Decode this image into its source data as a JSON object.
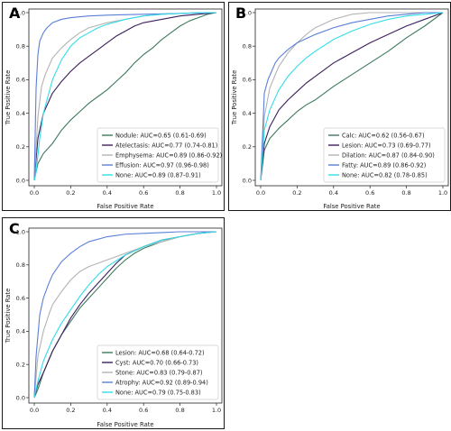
{
  "chart_data": [
    {
      "type": "line",
      "panel_label": "A",
      "xlabel": "False Positive Rate",
      "ylabel": "True Positive Rate",
      "xlim": [
        0.0,
        1.0
      ],
      "ylim": [
        0.0,
        1.0
      ],
      "x_ticks": [
        "0.0",
        "0.2",
        "0.4",
        "0.6",
        "0.8",
        "1.0"
      ],
      "y_ticks": [
        "0.0",
        "0.2",
        "0.4",
        "0.6",
        "0.8",
        "1.0"
      ],
      "grid": false,
      "legend_position": "lower-right",
      "series": [
        {
          "name": "Nodule: AUC=0.65 (0.61-0.69)",
          "color": "#3d7a5c",
          "x": [
            0,
            0.02,
            0.05,
            0.1,
            0.15,
            0.2,
            0.25,
            0.3,
            0.35,
            0.4,
            0.45,
            0.5,
            0.55,
            0.6,
            0.65,
            0.7,
            0.75,
            0.8,
            0.85,
            0.9,
            0.95,
            1.0
          ],
          "y": [
            0,
            0.1,
            0.16,
            0.22,
            0.3,
            0.36,
            0.41,
            0.46,
            0.5,
            0.54,
            0.59,
            0.64,
            0.7,
            0.75,
            0.79,
            0.84,
            0.88,
            0.92,
            0.95,
            0.97,
            0.99,
            1.0
          ]
        },
        {
          "name": "Atelectasis: AUC=0.77 (0.74-0.81)",
          "color": "#3b1f5c",
          "x": [
            0,
            0.02,
            0.05,
            0.1,
            0.15,
            0.2,
            0.25,
            0.3,
            0.35,
            0.4,
            0.45,
            0.5,
            0.55,
            0.6,
            0.7,
            0.8,
            0.9,
            1.0
          ],
          "y": [
            0,
            0.25,
            0.4,
            0.52,
            0.59,
            0.65,
            0.7,
            0.74,
            0.78,
            0.82,
            0.86,
            0.89,
            0.92,
            0.94,
            0.96,
            0.98,
            0.99,
            1.0
          ]
        },
        {
          "name": "Emphysema: AUC=0.89 (0.86-0.92)",
          "color": "#b3b3b3",
          "x": [
            0,
            0.02,
            0.04,
            0.06,
            0.08,
            0.1,
            0.15,
            0.2,
            0.25,
            0.3,
            0.4,
            0.5,
            0.6,
            0.7,
            0.8,
            0.9,
            1.0
          ],
          "y": [
            0,
            0.38,
            0.56,
            0.63,
            0.68,
            0.73,
            0.79,
            0.84,
            0.88,
            0.91,
            0.94,
            0.96,
            0.98,
            0.99,
            0.995,
            1.0,
            1.0
          ]
        },
        {
          "name": "Effusion: AUC=0.97 (0.96-0.98)",
          "color": "#5b7fd6",
          "x": [
            0,
            0.01,
            0.02,
            0.03,
            0.05,
            0.07,
            0.1,
            0.15,
            0.2,
            0.3,
            0.4,
            0.6,
            0.8,
            1.0
          ],
          "y": [
            0,
            0.55,
            0.75,
            0.83,
            0.88,
            0.91,
            0.94,
            0.96,
            0.97,
            0.98,
            0.985,
            0.99,
            0.995,
            1.0
          ]
        },
        {
          "name": "None: AUC=0.89 (0.87-0.91)",
          "color": "#33dde8",
          "x": [
            0,
            0.01,
            0.03,
            0.05,
            0.08,
            0.1,
            0.15,
            0.2,
            0.25,
            0.3,
            0.35,
            0.4,
            0.5,
            0.6,
            0.7,
            0.8,
            0.9,
            1.0
          ],
          "y": [
            0,
            0.05,
            0.25,
            0.4,
            0.52,
            0.6,
            0.72,
            0.8,
            0.85,
            0.88,
            0.91,
            0.93,
            0.96,
            0.98,
            0.99,
            0.995,
            1.0,
            1.0
          ]
        }
      ]
    },
    {
      "type": "line",
      "panel_label": "B",
      "xlabel": "False Positive Rate",
      "ylabel": "True Positive Rate",
      "xlim": [
        0.0,
        1.0
      ],
      "ylim": [
        0.0,
        1.0
      ],
      "x_ticks": [
        "0.0",
        "0.2",
        "0.4",
        "0.6",
        "0.8",
        "1.0"
      ],
      "y_ticks": [
        "0.0",
        "0.2",
        "0.4",
        "0.6",
        "0.8",
        "1.0"
      ],
      "grid": false,
      "legend_position": "lower-right",
      "series": [
        {
          "name": "Calc: AUC=0.62 (0.56-0.67)",
          "color": "#3d7a5c",
          "x": [
            0,
            0.02,
            0.05,
            0.1,
            0.15,
            0.2,
            0.25,
            0.3,
            0.35,
            0.4,
            0.5,
            0.6,
            0.7,
            0.8,
            0.9,
            1.0
          ],
          "y": [
            0,
            0.18,
            0.25,
            0.31,
            0.36,
            0.41,
            0.45,
            0.48,
            0.52,
            0.56,
            0.63,
            0.7,
            0.77,
            0.85,
            0.92,
            1.0
          ]
        },
        {
          "name": "Lesion: AUC=0.73 (0.69-0.77)",
          "color": "#3b1f5c",
          "x": [
            0,
            0.02,
            0.05,
            0.1,
            0.15,
            0.2,
            0.25,
            0.3,
            0.4,
            0.5,
            0.6,
            0.7,
            0.8,
            0.9,
            1.0
          ],
          "y": [
            0,
            0.22,
            0.32,
            0.42,
            0.48,
            0.53,
            0.58,
            0.62,
            0.7,
            0.76,
            0.82,
            0.87,
            0.92,
            0.96,
            1.0
          ]
        },
        {
          "name": "Dilation: AUC=0.87 (0.84-0.90)",
          "color": "#b3b3b3",
          "x": [
            0,
            0.02,
            0.05,
            0.08,
            0.1,
            0.15,
            0.2,
            0.25,
            0.3,
            0.4,
            0.5,
            0.6,
            0.7,
            0.8,
            1.0
          ],
          "y": [
            0,
            0.38,
            0.55,
            0.63,
            0.68,
            0.76,
            0.82,
            0.87,
            0.91,
            0.96,
            0.99,
            1.0,
            1.0,
            1.0,
            1.0
          ]
        },
        {
          "name": "Fatty: AUC=0.89 (0.86-0.92)",
          "color": "#5b7fd6",
          "x": [
            0,
            0.02,
            0.04,
            0.06,
            0.08,
            0.1,
            0.15,
            0.2,
            0.3,
            0.4,
            0.5,
            0.6,
            0.7,
            0.8,
            0.9,
            1.0
          ],
          "y": [
            0,
            0.52,
            0.6,
            0.65,
            0.7,
            0.73,
            0.78,
            0.82,
            0.87,
            0.91,
            0.94,
            0.96,
            0.98,
            0.99,
            1.0,
            1.0
          ]
        },
        {
          "name": "None: AUC=0.82 (0.78-0.85)",
          "color": "#33dde8",
          "x": [
            0,
            0.02,
            0.05,
            0.1,
            0.15,
            0.2,
            0.25,
            0.3,
            0.4,
            0.5,
            0.6,
            0.7,
            0.8,
            0.9,
            1.0
          ],
          "y": [
            0,
            0.3,
            0.42,
            0.54,
            0.62,
            0.68,
            0.73,
            0.77,
            0.84,
            0.89,
            0.93,
            0.96,
            0.98,
            0.99,
            1.0
          ]
        }
      ]
    },
    {
      "type": "line",
      "panel_label": "C",
      "xlabel": "False Positive Rate",
      "ylabel": "True Positive Rate",
      "xlim": [
        0.0,
        1.0
      ],
      "ylim": [
        0.0,
        1.0
      ],
      "x_ticks": [
        "0.0",
        "0.2",
        "0.4",
        "0.6",
        "0.8",
        "1.0"
      ],
      "y_ticks": [
        "0.0",
        "0.2",
        "0.4",
        "0.6",
        "0.8",
        "1.0"
      ],
      "grid": false,
      "legend_position": "lower-right",
      "series": [
        {
          "name": "Lesion: AUC=0.68 (0.64-0.72)",
          "color": "#3d7a5c",
          "x": [
            0,
            0.02,
            0.05,
            0.1,
            0.15,
            0.2,
            0.25,
            0.3,
            0.35,
            0.4,
            0.45,
            0.5,
            0.55,
            0.6,
            0.7,
            0.8,
            0.9,
            1.0
          ],
          "y": [
            0,
            0.05,
            0.15,
            0.28,
            0.38,
            0.46,
            0.54,
            0.6,
            0.66,
            0.72,
            0.78,
            0.83,
            0.87,
            0.9,
            0.94,
            0.97,
            0.99,
            1.0
          ]
        },
        {
          "name": "Cyst: AUC=0.70 (0.66-0.73)",
          "color": "#3b1f5c",
          "x": [
            0,
            0.02,
            0.05,
            0.1,
            0.15,
            0.2,
            0.25,
            0.3,
            0.35,
            0.4,
            0.45,
            0.5,
            0.6,
            0.7,
            0.8,
            0.9,
            1.0
          ],
          "y": [
            0,
            0.08,
            0.15,
            0.28,
            0.38,
            0.48,
            0.56,
            0.63,
            0.69,
            0.75,
            0.81,
            0.86,
            0.91,
            0.95,
            0.97,
            0.99,
            1.0
          ]
        },
        {
          "name": "Stone: AUC=0.83 (0.79-0.87)",
          "color": "#b3b3b3",
          "x": [
            0,
            0.02,
            0.05,
            0.08,
            0.1,
            0.15,
            0.2,
            0.25,
            0.3,
            0.4,
            0.5,
            0.6,
            0.7,
            0.8,
            0.9,
            1.0
          ],
          "y": [
            0,
            0.25,
            0.4,
            0.5,
            0.56,
            0.64,
            0.71,
            0.76,
            0.79,
            0.83,
            0.87,
            0.91,
            0.94,
            0.97,
            0.99,
            1.0
          ]
        },
        {
          "name": "Atrophy: AUC=0.92 (0.89-0.94)",
          "color": "#5b7fd6",
          "x": [
            0,
            0.01,
            0.03,
            0.05,
            0.08,
            0.1,
            0.15,
            0.2,
            0.25,
            0.3,
            0.4,
            0.5,
            0.6,
            0.7,
            0.8,
            0.9,
            1.0
          ],
          "y": [
            0,
            0.25,
            0.5,
            0.6,
            0.69,
            0.74,
            0.82,
            0.87,
            0.91,
            0.94,
            0.97,
            0.985,
            0.99,
            0.995,
            1.0,
            1.0,
            1.0
          ]
        },
        {
          "name": "None: AUC=0.79 (0.75-0.83)",
          "color": "#33dde8",
          "x": [
            0,
            0.02,
            0.05,
            0.1,
            0.15,
            0.2,
            0.25,
            0.3,
            0.35,
            0.4,
            0.5,
            0.6,
            0.7,
            0.8,
            0.9,
            1.0
          ],
          "y": [
            0,
            0.1,
            0.22,
            0.35,
            0.45,
            0.53,
            0.61,
            0.68,
            0.74,
            0.79,
            0.86,
            0.91,
            0.95,
            0.97,
            0.99,
            1.0
          ]
        }
      ]
    }
  ]
}
